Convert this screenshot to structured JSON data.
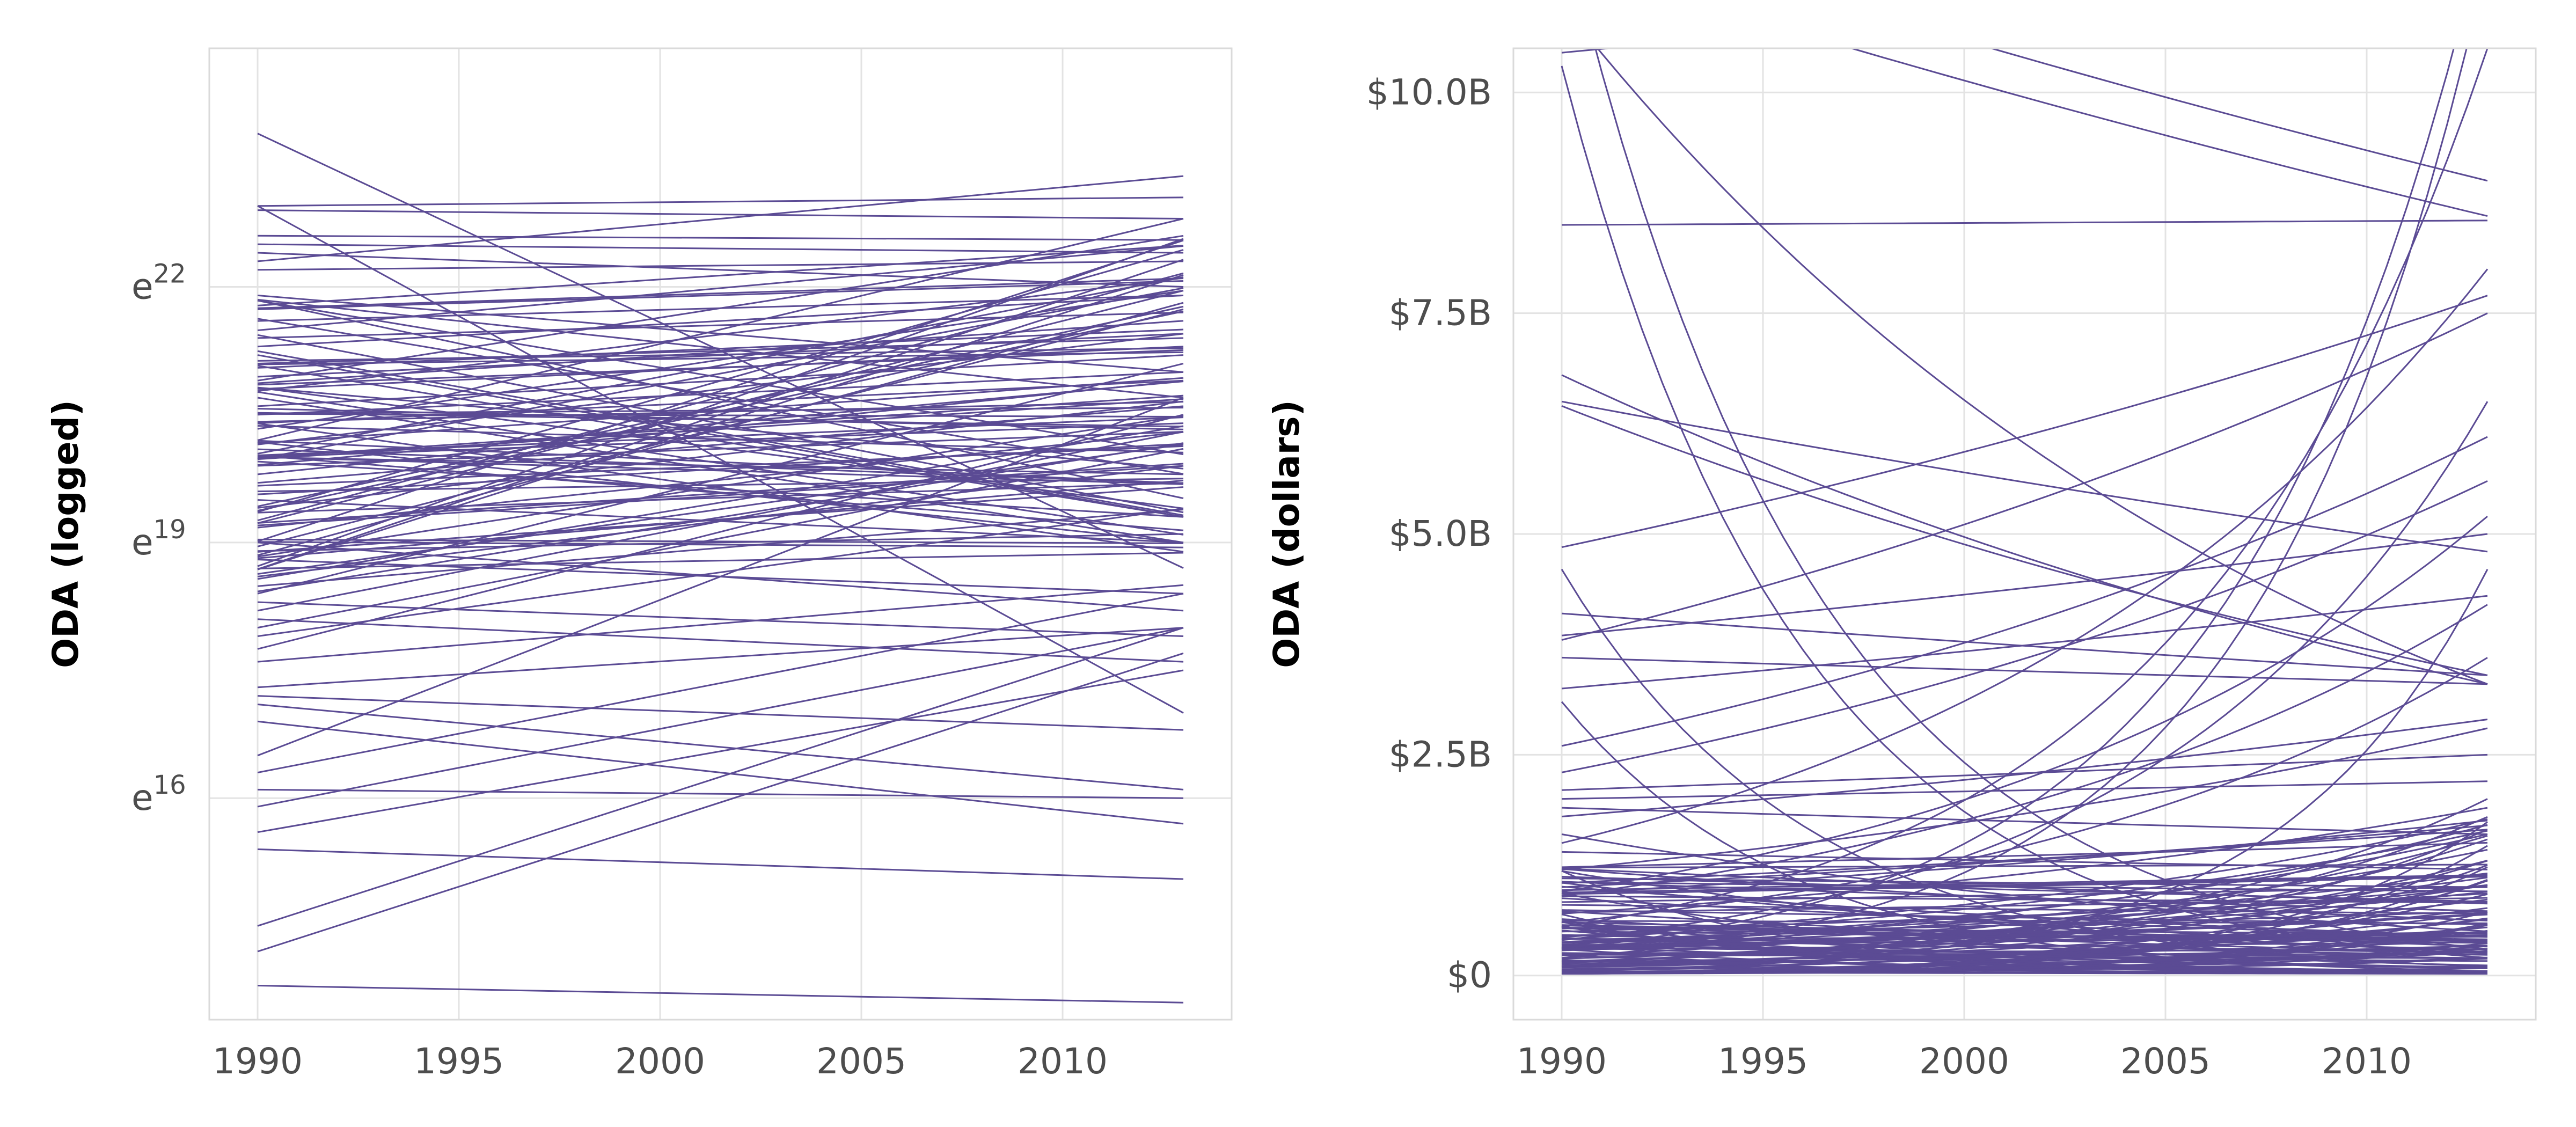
{
  "colors": {
    "line": "#5b4b94",
    "grid": "#e3e3e3",
    "text": "#4d4d4d"
  },
  "chart_data": [
    {
      "type": "line",
      "title": "",
      "ylabel": "ODA (logged)",
      "xlabel": "",
      "x_ticks": [
        1990,
        1995,
        2000,
        2005,
        2010
      ],
      "xlim": [
        1988.8,
        2014.2
      ],
      "y_scale": "log (natural), values are exponents of e",
      "y_ticks": [
        {
          "base": "e",
          "exp": "16",
          "value": 16
        },
        {
          "base": "e",
          "exp": "19",
          "value": 19
        },
        {
          "base": "e",
          "exp": "22",
          "value": 22
        }
      ],
      "ylim": [
        13.4,
        24.8
      ],
      "grid": true,
      "series_note": "Each line is one recipient's fitted trend of logged ODA, given as [log value in 1990, log value in 2013].",
      "lines": [
        [
          23.8,
          18.7
        ],
        [
          22.95,
          23.05
        ],
        [
          22.6,
          22.55
        ],
        [
          22.5,
          22.4
        ],
        [
          22.3,
          23.3
        ],
        [
          22.2,
          22.3
        ],
        [
          21.9,
          21.0
        ],
        [
          21.75,
          22.1
        ],
        [
          21.6,
          21.9
        ],
        [
          21.3,
          21.9
        ],
        [
          21.4,
          21.7
        ],
        [
          21.1,
          21.4
        ],
        [
          21.05,
          21.5
        ],
        [
          20.8,
          21.3
        ],
        [
          20.6,
          21.2
        ],
        [
          20.5,
          21.0
        ],
        [
          20.4,
          20.9
        ],
        [
          20.15,
          21.45
        ],
        [
          20.0,
          20.4
        ],
        [
          20.0,
          19.8
        ],
        [
          19.9,
          20.3
        ],
        [
          19.7,
          20.6
        ],
        [
          19.6,
          19.75
        ],
        [
          19.5,
          19.0
        ],
        [
          19.2,
          19.9
        ],
        [
          19.0,
          18.2
        ],
        [
          18.9,
          19.1
        ],
        [
          18.8,
          18.4
        ],
        [
          18.4,
          21.1
        ],
        [
          18.2,
          20.3
        ],
        [
          18.0,
          20.1
        ],
        [
          17.9,
          19.4
        ],
        [
          17.75,
          20.5
        ],
        [
          17.6,
          18.5
        ],
        [
          17.3,
          18.0
        ],
        [
          16.5,
          20.7
        ],
        [
          16.3,
          18.4
        ],
        [
          15.9,
          18.0
        ],
        [
          15.6,
          17.5
        ],
        [
          14.5,
          18.0
        ],
        [
          14.2,
          17.7
        ],
        [
          22.9,
          22.8
        ],
        [
          22.4,
          22.0
        ],
        [
          21.85,
          20.7
        ],
        [
          21.2,
          19.3
        ],
        [
          20.9,
          22.6
        ],
        [
          20.7,
          19.0
        ],
        [
          20.2,
          22.8
        ],
        [
          19.8,
          20.9
        ],
        [
          18.6,
          19.9
        ],
        [
          17.1,
          16.1
        ],
        [
          18.1,
          17.6
        ],
        [
          17.2,
          16.8
        ],
        [
          15.4,
          15.05
        ],
        [
          13.8,
          13.6
        ],
        [
          16.9,
          15.7
        ],
        [
          16.1,
          16.0
        ],
        [
          22.95,
          17.0
        ],
        [
          18.3,
          17.9
        ],
        [
          19.95,
          19.3
        ]
      ],
      "fill_band": {
        "count": 65,
        "start_min": 18.4,
        "start_max": 22.0,
        "end_min": 18.8,
        "end_max": 22.6
      }
    },
    {
      "type": "line",
      "title": "",
      "ylabel": "ODA (dollars)",
      "xlabel": "",
      "x_ticks": [
        1990,
        1995,
        2000,
        2005,
        2010
      ],
      "xlim": [
        1988.8,
        2014.2
      ],
      "y_ticks": [
        {
          "label": "$0",
          "value": 0
        },
        {
          "label": "$2.5B",
          "value": 2.5
        },
        {
          "label": "$5.0B",
          "value": 5.0
        },
        {
          "label": "$7.5B",
          "value": 7.5
        },
        {
          "label": "$10.0B",
          "value": 10.0
        }
      ],
      "ylim": [
        -0.5,
        10.5
      ],
      "y_units": "billions of dollars",
      "grid": true,
      "series_note": "Each line is one recipient's fitted trend in dollars (billions), given as [value in 1990, value in 2013]; curves grow or decay exponentially between the end values.",
      "lines": [
        [
          10.45,
          11.5
        ],
        [
          12.0,
          9.0
        ],
        [
          11.5,
          8.6
        ],
        [
          10.3,
          0.2
        ],
        [
          8.5,
          8.55
        ],
        [
          6.8,
          3.3
        ],
        [
          6.5,
          4.8
        ],
        [
          6.45,
          3.4
        ],
        [
          4.85,
          7.7
        ],
        [
          4.6,
          0.1
        ],
        [
          4.1,
          3.4
        ],
        [
          3.85,
          5.0
        ],
        [
          3.8,
          7.5
        ],
        [
          3.6,
          3.3
        ],
        [
          3.25,
          4.3
        ],
        [
          3.1,
          0.05
        ],
        [
          2.6,
          6.1
        ],
        [
          2.3,
          5.6
        ],
        [
          2.1,
          2.5
        ],
        [
          2.0,
          2.2
        ],
        [
          1.9,
          1.6
        ],
        [
          1.8,
          2.9
        ],
        [
          1.6,
          0.5
        ],
        [
          1.5,
          8.0
        ],
        [
          1.4,
          1.2
        ],
        [
          1.2,
          2.8
        ],
        [
          1.1,
          1.0
        ],
        [
          1.0,
          1.7
        ],
        [
          0.95,
          5.2
        ],
        [
          0.9,
          4.2
        ],
        [
          0.8,
          0.7
        ],
        [
          0.7,
          1.9
        ],
        [
          0.6,
          3.6
        ],
        [
          0.55,
          10.5
        ],
        [
          0.5,
          0.4
        ],
        [
          0.4,
          6.5
        ],
        [
          0.35,
          1.6
        ],
        [
          0.3,
          12.0
        ],
        [
          0.25,
          0.3
        ],
        [
          0.2,
          11.5
        ],
        [
          0.15,
          2.0
        ],
        [
          0.1,
          1.3
        ],
        [
          0.05,
          4.6
        ],
        [
          11.0,
          3.3
        ],
        [
          12.0,
          0.3
        ]
      ],
      "fill_band": {
        "count": 100,
        "start_min": 0.0,
        "start_max": 1.3,
        "end_min": 0.0,
        "end_max": 1.8
      }
    }
  ]
}
